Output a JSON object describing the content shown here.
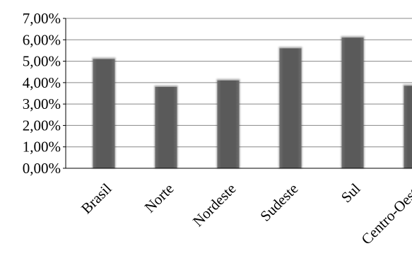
{
  "chart_data": {
    "type": "bar",
    "title": "",
    "xlabel": "",
    "ylabel": "",
    "categories": [
      "Brasil",
      "Norte",
      "Nordeste",
      "Sudeste",
      "Sul",
      "Centro-Oeste"
    ],
    "values": [
      5.1,
      3.8,
      4.1,
      5.6,
      6.1,
      3.85
    ],
    "ylim": [
      0,
      7
    ],
    "yticks": [
      "0,00%",
      "1,00%",
      "2,00%",
      "3,00%",
      "4,00%",
      "5,00%",
      "6,00%",
      "7,00%"
    ],
    "grid": true,
    "legend": "none",
    "colors": {
      "bar": "#595959",
      "bar_edge": "#3f3f3f",
      "grid": "#888888",
      "axis": "#000000"
    }
  }
}
